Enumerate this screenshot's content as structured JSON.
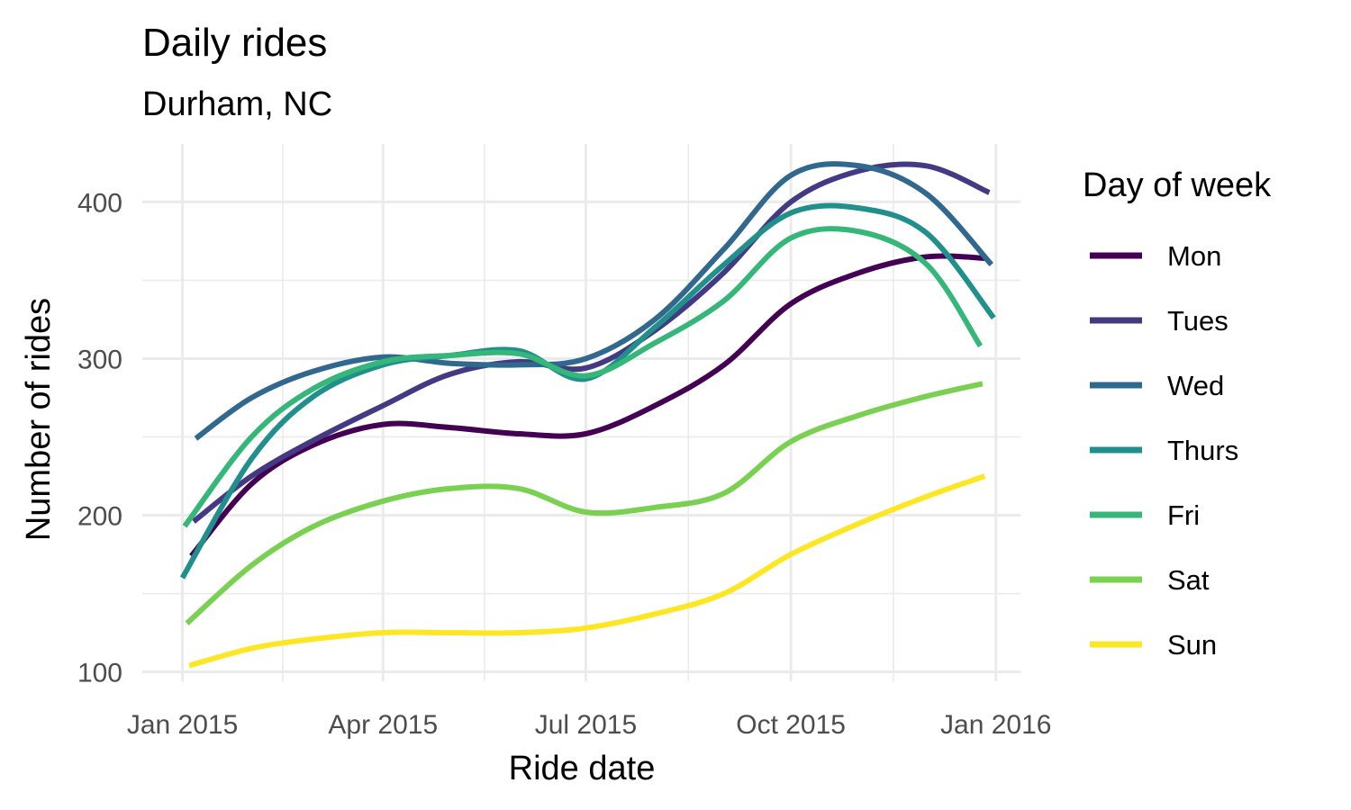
{
  "chart_data": {
    "type": "line",
    "title": "Daily rides",
    "subtitle": "Durham, NC",
    "xlabel": "Ride date",
    "ylabel": "Number of rides",
    "x_tick_labels": [
      "Jan 2015",
      "Apr 2015",
      "Jul 2015",
      "Oct 2015",
      "Jan 2016"
    ],
    "y_ticks": [
      100,
      200,
      300,
      400
    ],
    "ylim": [
      94,
      437
    ],
    "xlim": [
      "2014-12-14",
      "2016-01-12"
    ],
    "grid": true,
    "legend": {
      "title": "Day of week",
      "position": "right"
    },
    "series": [
      {
        "name": "Mon",
        "color": "#440154",
        "x": [
          "2015-01-05",
          "2015-02-01",
          "2015-03-01",
          "2015-04-01",
          "2015-05-01",
          "2015-06-01",
          "2015-07-01",
          "2015-08-01",
          "2015-09-01",
          "2015-10-01",
          "2015-11-01",
          "2015-12-01",
          "2015-12-28"
        ],
        "y": [
          174,
          220,
          245,
          258,
          256,
          252,
          252,
          270,
          296,
          335,
          355,
          365,
          364
        ]
      },
      {
        "name": "Tues",
        "color": "#443A83",
        "x": [
          "2015-01-06",
          "2015-02-01",
          "2015-03-01",
          "2015-04-01",
          "2015-05-01",
          "2015-06-01",
          "2015-07-01",
          "2015-08-01",
          "2015-09-01",
          "2015-10-01",
          "2015-11-01",
          "2015-12-01",
          "2015-12-29"
        ],
        "y": [
          196,
          225,
          248,
          270,
          290,
          298,
          294,
          318,
          355,
          400,
          420,
          423,
          406
        ]
      },
      {
        "name": "Wed",
        "color": "#31688E",
        "x": [
          "2015-01-07",
          "2015-02-01",
          "2015-03-01",
          "2015-04-01",
          "2015-05-01",
          "2015-06-01",
          "2015-07-01",
          "2015-08-01",
          "2015-09-01",
          "2015-10-01",
          "2015-11-01",
          "2015-12-01",
          "2015-12-30"
        ],
        "y": [
          249,
          275,
          292,
          301,
          297,
          296,
          300,
          325,
          370,
          417,
          423,
          405,
          360
        ]
      },
      {
        "name": "Thurs",
        "color": "#21908C",
        "x": [
          "2015-01-01",
          "2015-02-01",
          "2015-03-01",
          "2015-04-01",
          "2015-05-01",
          "2015-06-01",
          "2015-07-01",
          "2015-08-01",
          "2015-09-01",
          "2015-10-01",
          "2015-11-01",
          "2015-12-01",
          "2015-12-31"
        ],
        "y": [
          160,
          236,
          276,
          296,
          302,
          305,
          287,
          320,
          360,
          393,
          396,
          380,
          326
        ]
      },
      {
        "name": "Fri",
        "color": "#35B779",
        "x": [
          "2015-01-02",
          "2015-02-01",
          "2015-03-01",
          "2015-04-01",
          "2015-05-01",
          "2015-06-01",
          "2015-07-01",
          "2015-08-01",
          "2015-09-01",
          "2015-10-01",
          "2015-11-01",
          "2015-12-01",
          "2015-12-25"
        ],
        "y": [
          193,
          250,
          281,
          298,
          302,
          303,
          289,
          310,
          337,
          377,
          381,
          360,
          308
        ]
      },
      {
        "name": "Sat",
        "color": "#7AD151",
        "x": [
          "2015-01-03",
          "2015-02-01",
          "2015-03-01",
          "2015-04-01",
          "2015-05-01",
          "2015-06-01",
          "2015-07-01",
          "2015-08-01",
          "2015-09-01",
          "2015-10-01",
          "2015-11-01",
          "2015-12-01",
          "2015-12-26"
        ],
        "y": [
          131,
          168,
          193,
          209,
          217,
          217,
          202,
          205,
          214,
          247,
          264,
          276,
          284
        ]
      },
      {
        "name": "Sun",
        "color": "#FDE725",
        "x": [
          "2015-01-04",
          "2015-02-01",
          "2015-03-01",
          "2015-04-01",
          "2015-05-01",
          "2015-06-01",
          "2015-07-01",
          "2015-08-01",
          "2015-09-01",
          "2015-10-01",
          "2015-11-01",
          "2015-12-01",
          "2015-12-27"
        ],
        "y": [
          104,
          115,
          121,
          125,
          125,
          125,
          128,
          137,
          150,
          175,
          195,
          212,
          225
        ]
      }
    ]
  }
}
